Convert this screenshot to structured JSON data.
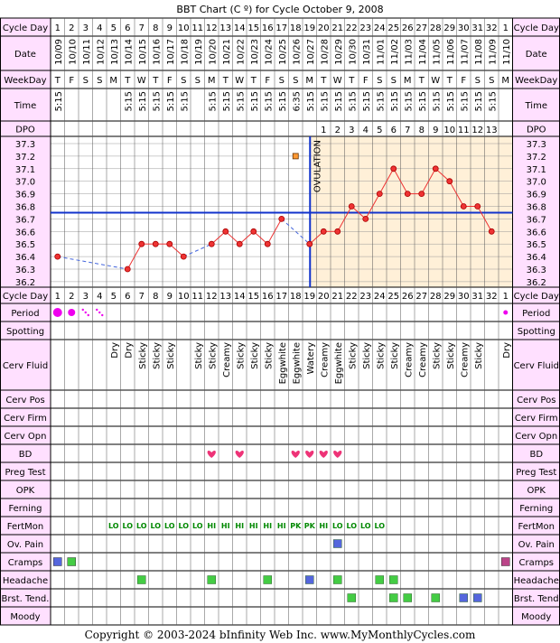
{
  "title": "BBT Chart (C º) for Cycle October 9, 2008",
  "footer": "Copyright © 2003-2024 bInfinity Web Inc.     www.MyMonthlyCycles.com",
  "ovulation_label": "OVULATION",
  "row_labels": {
    "cycle_day": "Cycle Day",
    "date": "Date",
    "weekday": "WeekDay",
    "time": "Time",
    "dpo": "DPO",
    "period": "Period",
    "spotting": "Spotting",
    "cerv_fluid": "Cerv Fluid",
    "cerv_pos": "Cerv Pos",
    "cerv_firm": "Cerv Firm",
    "cerv_opn": "Cerv Opn",
    "bd": "BD",
    "preg_test": "Preg Test",
    "opk": "OPK",
    "ferning": "Ferning",
    "fertmon": "FertMon",
    "ov_pain": "Ov. Pain",
    "cramps": "Cramps",
    "headache": "Headache",
    "brst_tend": "Brst. Tend.",
    "moody": "Moody"
  },
  "right_labels": {
    "brst_tend": "Brst. Tend"
  },
  "cycle_days": [
    "1",
    "2",
    "3",
    "4",
    "5",
    "6",
    "7",
    "8",
    "9",
    "10",
    "11",
    "12",
    "13",
    "14",
    "15",
    "16",
    "17",
    "18",
    "19",
    "20",
    "21",
    "22",
    "23",
    "24",
    "25",
    "26",
    "27",
    "28",
    "29",
    "30",
    "31",
    "32",
    "1"
  ],
  "dates": [
    "10/09",
    "10/10",
    "10/11",
    "10/12",
    "10/13",
    "10/14",
    "10/15",
    "10/16",
    "10/17",
    "10/18",
    "10/19",
    "10/20",
    "10/21",
    "10/22",
    "10/23",
    "10/24",
    "10/25",
    "10/26",
    "10/27",
    "10/28",
    "10/29",
    "10/30",
    "10/31",
    "11/01",
    "11/02",
    "11/03",
    "11/04",
    "11/05",
    "11/06",
    "11/07",
    "11/08",
    "11/09",
    "11/10"
  ],
  "weekdays": [
    "T",
    "F",
    "S",
    "S",
    "M",
    "T",
    "W",
    "T",
    "F",
    "S",
    "S",
    "M",
    "T",
    "W",
    "T",
    "F",
    "S",
    "S",
    "M",
    "T",
    "W",
    "T",
    "F",
    "S",
    "S",
    "M",
    "T",
    "W",
    "T",
    "F",
    "S",
    "S",
    "M"
  ],
  "times": [
    "5:15",
    "",
    "",
    "",
    "",
    "5:15",
    "5:15",
    "5:15",
    "5:15",
    "5:15",
    "",
    "5:15",
    "5:15",
    "5:15",
    "5:15",
    "5:15",
    "5:15",
    "6:35",
    "5:15",
    "5:15",
    "5:15",
    "5:15",
    "5:15",
    "5:15",
    "5:15",
    "5:15",
    "5:15",
    "5:15",
    "5:15",
    "5:15",
    "5:15",
    "5:15",
    ""
  ],
  "dpo": [
    "",
    "",
    "",
    "",
    "",
    "",
    "",
    "",
    "",
    "",
    "",
    "",
    "",
    "",
    "",
    "",
    "",
    "",
    "",
    "1",
    "2",
    "3",
    "4",
    "5",
    "6",
    "7",
    "8",
    "9",
    "10",
    "11",
    "12",
    "13",
    ""
  ],
  "cerv_fluid": [
    "",
    "",
    "",
    "",
    "Dry",
    "Dry",
    "Sticky",
    "Sticky",
    "Sticky",
    "",
    "Sticky",
    "Sticky",
    "Creamy",
    "Sticky",
    "Sticky",
    "Sticky",
    "Eggwhite",
    "Eggwhite",
    "Watery",
    "Creamy",
    "Eggwhite",
    "Sticky",
    "Sticky",
    "Sticky",
    "Sticky",
    "Creamy",
    "Creamy",
    "Sticky",
    "Sticky",
    "Creamy",
    "Sticky",
    "",
    "Dry"
  ],
  "fertmon": [
    "",
    "",
    "",
    "",
    "LO",
    "LO",
    "LO",
    "LO",
    "LO",
    "LO",
    "LO",
    "HI",
    "HI",
    "HI",
    "HI",
    "HI",
    "HI",
    "PK",
    "PK",
    "HI",
    "LO",
    "LO",
    "LO",
    "LO",
    "",
    "",
    "",
    "",
    "",
    "",
    "",
    "",
    ""
  ],
  "period": [
    "heavy",
    "medium",
    "spot-light",
    "spot-light",
    "",
    "",
    "",
    "",
    "",
    "",
    "",
    "",
    "",
    "",
    "",
    "",
    "",
    "",
    "",
    "",
    "",
    "",
    "",
    "",
    "",
    "",
    "",
    "",
    "",
    "",
    "",
    "",
    "light"
  ],
  "bd_days": [
    12,
    14,
    18,
    19,
    20,
    21
  ],
  "ov_pain_days": [
    21
  ],
  "cramps_days": [
    1,
    2,
    33
  ],
  "headache_days": [
    7,
    12,
    16,
    19,
    21,
    24,
    25
  ],
  "brst_tend_days": [
    22,
    25,
    26,
    28,
    30,
    31
  ],
  "colors": {
    "label_bg": "#ffe0ff",
    "grid": "#000000",
    "temp_line": "#ee3333",
    "dashed": "#4466dd",
    "coverline": "#1133cc",
    "post_ov_bg": "#fff0d8",
    "heart": "#ee3377",
    "period_dot": "#ee00ee",
    "green_sq": "#44cc44",
    "blue_sq": "#5566dd",
    "purple_sq": "#bb4488",
    "fertmon_text": "#008800"
  },
  "chart_data": {
    "type": "line",
    "title": "BBT Chart (C º) for Cycle October 9, 2008",
    "x_label": "Cycle Day",
    "y_unit": "C",
    "ylim": [
      36.2,
      37.3
    ],
    "y_ticks": [
      "37.3",
      "37.2",
      "37.1",
      "37.0",
      "36.9",
      "36.8",
      "36.7",
      "36.6",
      "36.5",
      "36.4",
      "36.3",
      "36.2"
    ],
    "coverline": 36.75,
    "ovulation_day": 19,
    "series": [
      {
        "temps": [
          36.4,
          null,
          null,
          null,
          null,
          36.3,
          36.5,
          36.5,
          36.5,
          36.4,
          null,
          36.5,
          36.6,
          36.5,
          36.6,
          36.5,
          36.7,
          null,
          36.5,
          36.6,
          36.6,
          36.8,
          36.7,
          36.9,
          37.1,
          36.9,
          36.9,
          37.1,
          37.0,
          36.8,
          36.8,
          36.6,
          null
        ],
        "discarded": [
          {
            "day": 18,
            "value": 37.2
          }
        ]
      }
    ]
  }
}
